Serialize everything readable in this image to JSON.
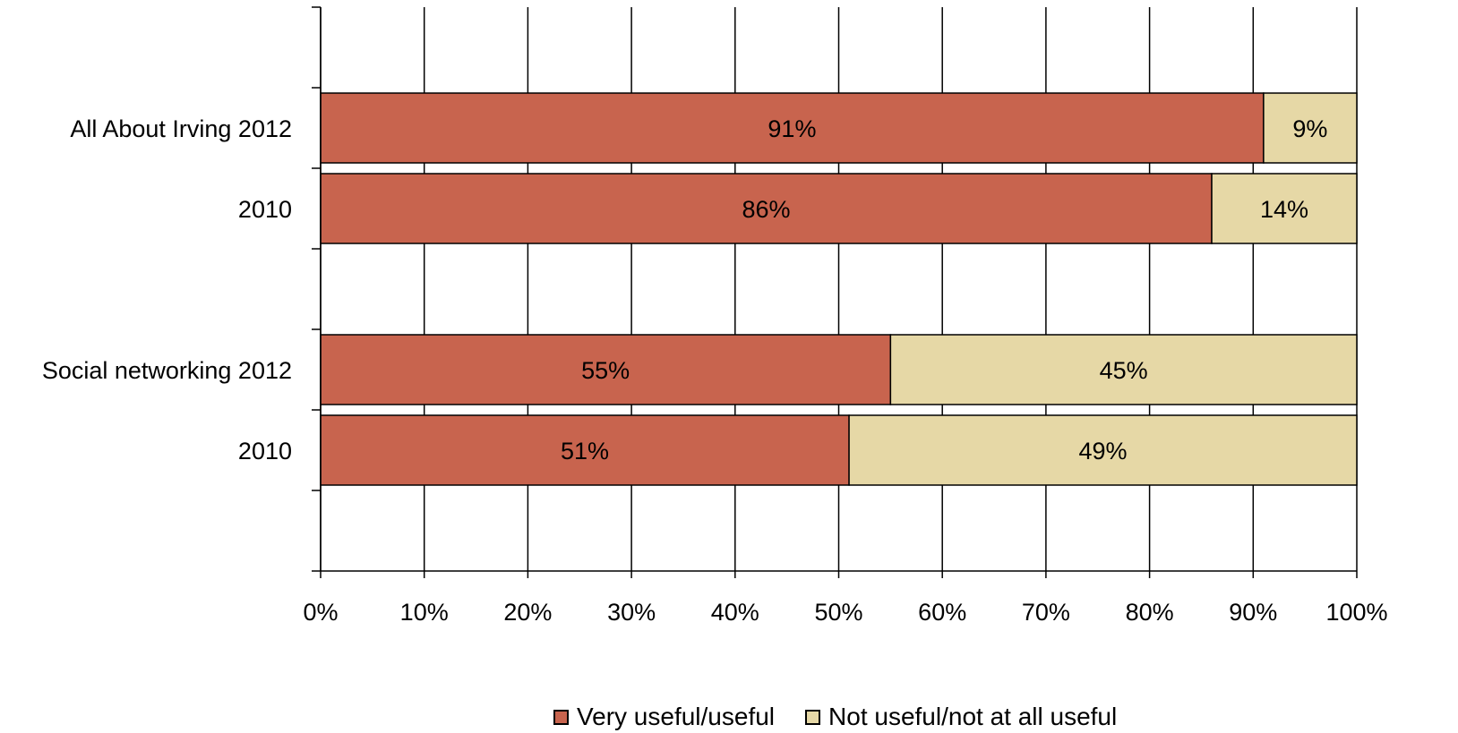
{
  "chart_data": {
    "type": "bar",
    "orientation": "horizontal",
    "stacked": true,
    "categories": [
      "All About Irving 2012",
      "2010",
      "Social networking 2012",
      "2010"
    ],
    "series": [
      {
        "name": "Very useful/useful",
        "color": "#C8644E",
        "values": [
          91,
          86,
          55,
          51
        ],
        "labels": [
          "91%",
          "86%",
          "55%",
          "51%"
        ]
      },
      {
        "name": "Not useful/not at all useful",
        "color": "#E6D8A6",
        "values": [
          9,
          14,
          45,
          49
        ],
        "labels": [
          "9%",
          "14%",
          "45%",
          "49%"
        ]
      }
    ],
    "xlim": [
      0,
      100
    ],
    "xticks": [
      "0%",
      "10%",
      "20%",
      "30%",
      "40%",
      "50%",
      "60%",
      "70%",
      "80%",
      "90%",
      "100%"
    ],
    "grid": true,
    "legend_position": "bottom"
  }
}
